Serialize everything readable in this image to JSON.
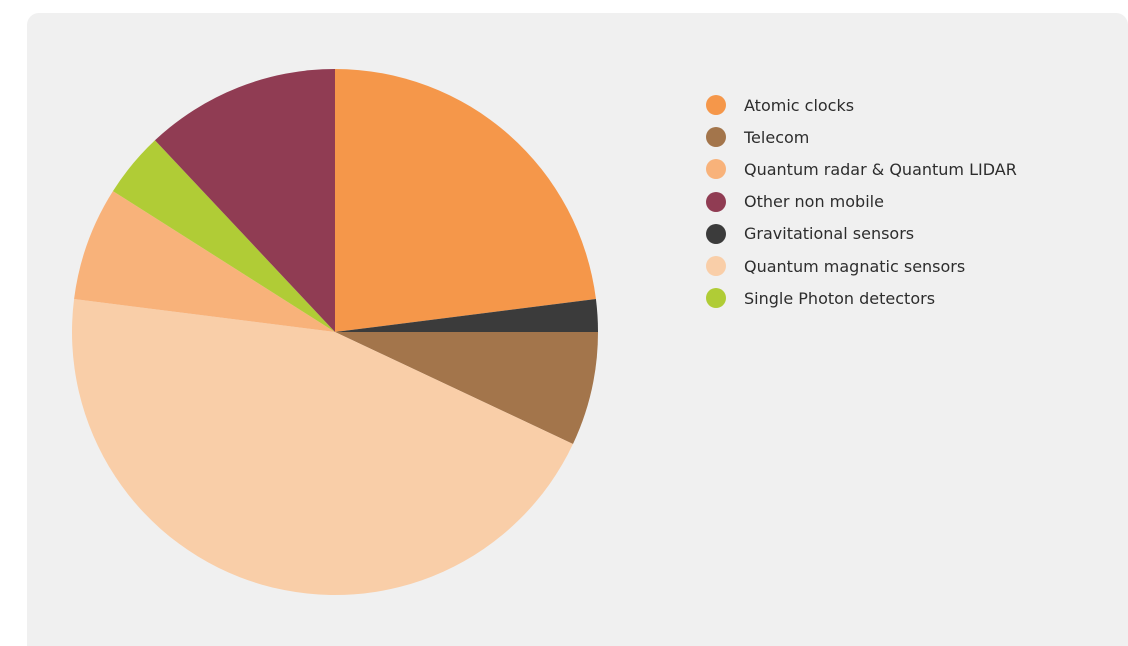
{
  "chart_data": {
    "type": "pie",
    "title": "",
    "legend_position": "right",
    "start_angle_deg": 0,
    "direction": "clockwise",
    "slices": [
      {
        "label": "Atomic clocks",
        "value": 23,
        "color": "#f5974a"
      },
      {
        "label": "Gravitational sensors",
        "value": 2,
        "color": "#3b3b3b"
      },
      {
        "label": "Telecom",
        "value": 7,
        "color": "#a3754b"
      },
      {
        "label": "Quantum magnatic sensors",
        "value": 45,
        "color": "#f9cea8"
      },
      {
        "label": "Quantum radar & Quantum LIDAR",
        "value": 7,
        "color": "#f8b27a"
      },
      {
        "label": "Single Photon detectors",
        "value": 4,
        "color": "#b0cc36"
      },
      {
        "label": "Other non mobile",
        "value": 12,
        "color": "#903c53"
      }
    ],
    "legend": [
      {
        "label": "Atomic clocks",
        "color": "#f5974a"
      },
      {
        "label": "Telecom",
        "color": "#a3754b"
      },
      {
        "label": "Quantum radar & Quantum LIDAR",
        "color": "#f8b27a"
      },
      {
        "label": "Other non mobile",
        "color": "#903c53"
      },
      {
        "label": "Gravitational sensors",
        "color": "#3b3b3b"
      },
      {
        "label": "Quantum magnatic sensors",
        "color": "#f9cea8"
      },
      {
        "label": "Single Photon detectors",
        "color": "#b0cc36"
      }
    ]
  }
}
